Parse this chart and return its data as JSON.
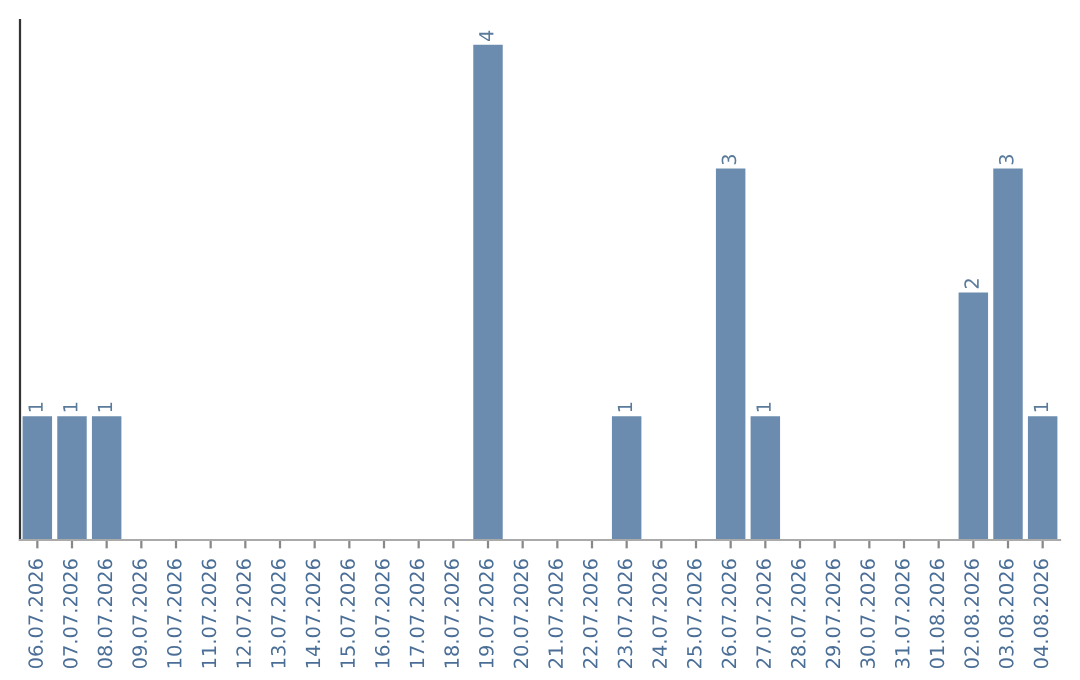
{
  "chart_data": {
    "type": "bar",
    "categories": [
      "06.07.2026",
      "07.07.2026",
      "08.07.2026",
      "09.07.2026",
      "10.07.2026",
      "11.07.2026",
      "12.07.2026",
      "13.07.2026",
      "14.07.2026",
      "15.07.2026",
      "16.07.2026",
      "17.07.2026",
      "18.07.2026",
      "19.07.2026",
      "20.07.2026",
      "21.07.2026",
      "22.07.2026",
      "23.07.2026",
      "24.07.2026",
      "25.07.2026",
      "26.07.2026",
      "27.07.2026",
      "28.07.2026",
      "29.07.2026",
      "30.07.2026",
      "31.07.2026",
      "01.08.2026",
      "02.08.2026",
      "03.08.2026",
      "04.08.2026"
    ],
    "values": [
      1,
      1,
      1,
      0,
      0,
      0,
      0,
      0,
      0,
      0,
      0,
      0,
      0,
      4,
      0,
      0,
      0,
      1,
      0,
      0,
      3,
      1,
      0,
      0,
      0,
      0,
      0,
      2,
      3,
      1
    ],
    "value_labels": [
      "1",
      "1",
      "1",
      null,
      null,
      null,
      null,
      null,
      null,
      null,
      null,
      null,
      null,
      "4",
      null,
      null,
      null,
      "1",
      null,
      null,
      "3",
      "1",
      null,
      null,
      null,
      null,
      null,
      "2",
      "3",
      "1"
    ],
    "color": "#6b8cae",
    "ylim": [
      0,
      4.2
    ],
    "grid": false,
    "legend": false
  }
}
